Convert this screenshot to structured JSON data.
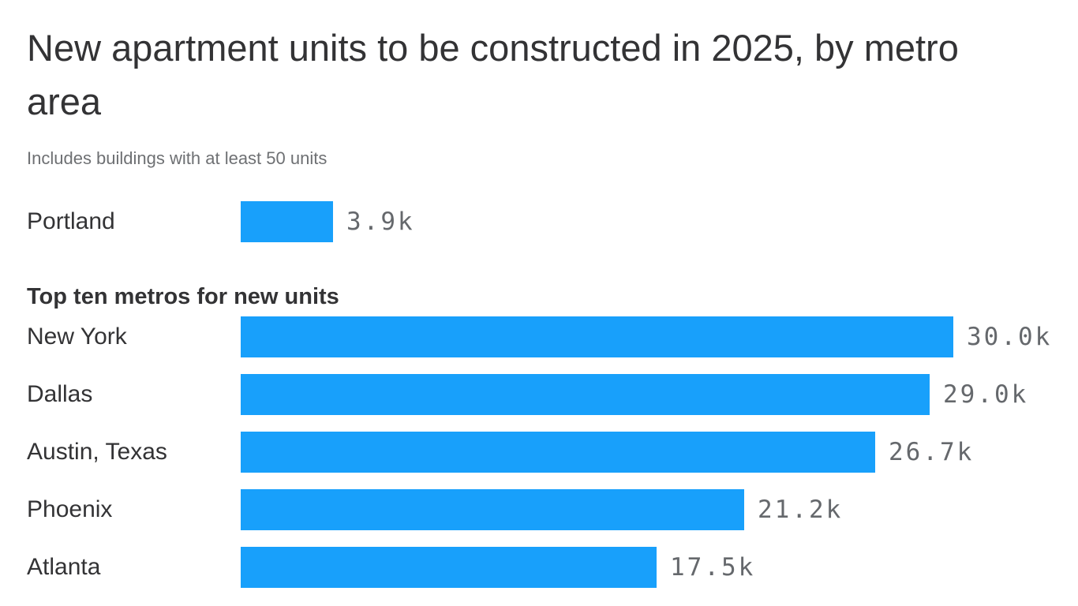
{
  "chart_data": {
    "type": "bar",
    "orientation": "horizontal",
    "title": "New apartment units to be constructed in 2025, by metro area",
    "subtitle": "Includes buildings with at least 50 units",
    "group_heading": "Top ten metros for new units",
    "bar_color": "#18a0fb",
    "label_color": "#333335",
    "value_color": "#65686c",
    "value_suffix": "k",
    "xlim": [
      0,
      30
    ],
    "legend": "none",
    "grid": "off",
    "featured": {
      "label": "Portland",
      "value": 3.9,
      "value_label": "3.9k"
    },
    "rows": [
      {
        "label": "New York",
        "value": 30.0,
        "value_label": "30.0k"
      },
      {
        "label": "Dallas",
        "value": 29.0,
        "value_label": "29.0k"
      },
      {
        "label": "Austin, Texas",
        "value": 26.7,
        "value_label": "26.7k"
      },
      {
        "label": "Phoenix",
        "value": 21.2,
        "value_label": "21.2k"
      },
      {
        "label": "Atlanta",
        "value": 17.5,
        "value_label": "17.5k"
      }
    ]
  }
}
